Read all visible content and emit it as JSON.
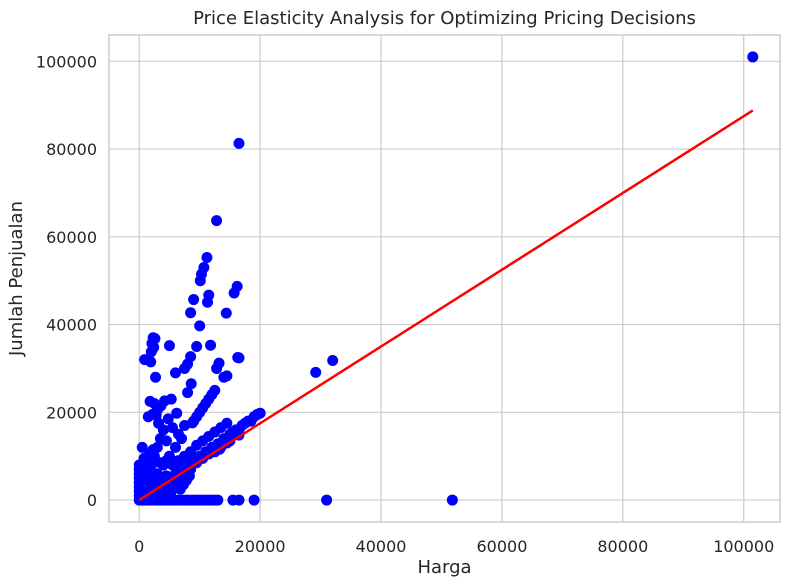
{
  "chart_data": {
    "type": "scatter",
    "title": "Price Elasticity Analysis for Optimizing Pricing Decisions",
    "xlabel": "Harga",
    "ylabel": "Jumlah Penjualan",
    "xlim": [
      -5000,
      106000
    ],
    "ylim": [
      -5000,
      106000
    ],
    "grid": true,
    "xticks": [
      0,
      20000,
      40000,
      60000,
      80000,
      100000
    ],
    "yticks": [
      0,
      20000,
      40000,
      60000,
      80000,
      100000
    ],
    "xtick_labels": [
      "0",
      "20000",
      "40000",
      "60000",
      "80000",
      "100000"
    ],
    "ytick_labels": [
      "0",
      "20000",
      "40000",
      "60000",
      "80000",
      "100000"
    ],
    "colors": {
      "points": "#0000ff",
      "fit_line": "#ff0000",
      "grid": "#cccccc"
    },
    "series": [
      {
        "kind": "scatter",
        "points": [
          [
            101500,
            101000
          ],
          [
            16500,
            81300
          ],
          [
            12800,
            63700
          ],
          [
            11200,
            55300
          ],
          [
            10700,
            53000
          ],
          [
            10300,
            51500
          ],
          [
            10100,
            50000
          ],
          [
            16200,
            48700
          ],
          [
            15700,
            47200
          ],
          [
            11500,
            46700
          ],
          [
            11300,
            45100
          ],
          [
            9000,
            45700
          ],
          [
            8500,
            42700
          ],
          [
            14400,
            42600
          ],
          [
            10000,
            39700
          ],
          [
            2300,
            37000
          ],
          [
            2600,
            36800
          ],
          [
            2100,
            35700
          ],
          [
            2400,
            34800
          ],
          [
            2000,
            33800
          ],
          [
            9500,
            35000
          ],
          [
            11800,
            35300
          ],
          [
            16300,
            32500
          ],
          [
            16500,
            32400
          ],
          [
            900,
            32000
          ],
          [
            1900,
            31500
          ],
          [
            2700,
            28000
          ],
          [
            29200,
            29100
          ],
          [
            32000,
            31800
          ],
          [
            5000,
            35200
          ],
          [
            6000,
            29000
          ],
          [
            7500,
            30000
          ],
          [
            8000,
            31000
          ],
          [
            8500,
            32700
          ],
          [
            13200,
            31200
          ],
          [
            12800,
            30000
          ],
          [
            14000,
            28000
          ],
          [
            14500,
            28300
          ],
          [
            1800,
            22500
          ],
          [
            2500,
            22000
          ],
          [
            2200,
            19500
          ],
          [
            3000,
            20500
          ],
          [
            3600,
            21500
          ],
          [
            4200,
            22600
          ],
          [
            5300,
            23000
          ],
          [
            6200,
            19800
          ],
          [
            8000,
            24500
          ],
          [
            8600,
            26500
          ],
          [
            1500,
            19000
          ],
          [
            2800,
            19300
          ],
          [
            3200,
            17500
          ],
          [
            4800,
            18500
          ],
          [
            9000,
            18000
          ],
          [
            10000,
            20000
          ],
          [
            11000,
            22000
          ],
          [
            12000,
            24000
          ],
          [
            12500,
            25000
          ],
          [
            8800,
            17600
          ],
          [
            10500,
            21000
          ],
          [
            11500,
            23000
          ],
          [
            9500,
            19000
          ],
          [
            20000,
            19800
          ],
          [
            19000,
            19000
          ],
          [
            18000,
            18000
          ],
          [
            17000,
            17000
          ],
          [
            16000,
            16000
          ],
          [
            15000,
            15000
          ],
          [
            14000,
            14000
          ],
          [
            13000,
            12800
          ],
          [
            12000,
            12000
          ],
          [
            11000,
            11000
          ],
          [
            10000,
            10000
          ],
          [
            9000,
            9000
          ],
          [
            8000,
            8000
          ],
          [
            7000,
            7000
          ],
          [
            6000,
            6000
          ],
          [
            5000,
            5000
          ],
          [
            4000,
            4000
          ],
          [
            3000,
            3000
          ],
          [
            2000,
            2000
          ],
          [
            1000,
            1000
          ],
          [
            13300,
            11600
          ],
          [
            14500,
            13000
          ],
          [
            15500,
            15500
          ],
          [
            16500,
            16000
          ],
          [
            3500,
            14000
          ],
          [
            3000,
            12000
          ],
          [
            4000,
            16000
          ],
          [
            4500,
            13500
          ],
          [
            5500,
            16500
          ],
          [
            6500,
            15000
          ],
          [
            7500,
            17000
          ],
          [
            2500,
            10000
          ],
          [
            2000,
            8000
          ],
          [
            1500,
            6000
          ],
          [
            1000,
            4000
          ],
          [
            500,
            2000
          ],
          [
            6000,
            12000
          ],
          [
            7000,
            14000
          ],
          [
            5000,
            10000
          ],
          [
            4000,
            8000
          ],
          [
            3000,
            6000
          ],
          [
            2000,
            4000
          ],
          [
            1000,
            2000
          ],
          [
            500,
            12000
          ],
          [
            300,
            8000
          ],
          [
            800,
            9500
          ],
          [
            1200,
            7500
          ],
          [
            1700,
            10500
          ],
          [
            2300,
            11500
          ],
          [
            2700,
            9000
          ],
          [
            3500,
            8500
          ],
          [
            4500,
            9000
          ],
          [
            5500,
            8000
          ],
          [
            6500,
            9000
          ],
          [
            7500,
            10000
          ],
          [
            8500,
            11000
          ],
          [
            9500,
            12500
          ],
          [
            10500,
            13500
          ],
          [
            11500,
            14500
          ],
          [
            12500,
            15500
          ],
          [
            13500,
            16500
          ],
          [
            14500,
            17500
          ],
          [
            200,
            6000
          ],
          [
            400,
            5000
          ],
          [
            600,
            4000
          ],
          [
            800,
            3000
          ],
          [
            100,
            1500
          ],
          [
            1500,
            5000
          ],
          [
            2500,
            5500
          ],
          [
            3500,
            5000
          ],
          [
            4500,
            5500
          ],
          [
            5500,
            5000
          ],
          [
            6500,
            6000
          ],
          [
            7500,
            6500
          ],
          [
            8500,
            7000
          ],
          [
            9500,
            8500
          ],
          [
            10500,
            9500
          ],
          [
            11500,
            10500
          ],
          [
            12500,
            11000
          ],
          [
            13500,
            12000
          ],
          [
            15000,
            13500
          ],
          [
            16500,
            14800
          ],
          [
            17500,
            17500
          ],
          [
            18500,
            18000
          ],
          [
            19500,
            19500
          ],
          [
            0,
            0
          ],
          [
            500,
            0
          ],
          [
            1000,
            0
          ],
          [
            1500,
            0
          ],
          [
            2000,
            0
          ],
          [
            2500,
            0
          ],
          [
            3000,
            0
          ],
          [
            3500,
            0
          ],
          [
            4000,
            0
          ],
          [
            4500,
            0
          ],
          [
            5000,
            0
          ],
          [
            5500,
            0
          ],
          [
            6000,
            0
          ],
          [
            6500,
            0
          ],
          [
            7000,
            0
          ],
          [
            7500,
            0
          ],
          [
            8000,
            0
          ],
          [
            8500,
            0
          ],
          [
            9000,
            0
          ],
          [
            9500,
            0
          ],
          [
            10000,
            0
          ],
          [
            10500,
            0
          ],
          [
            11000,
            0
          ],
          [
            11500,
            0
          ],
          [
            12000,
            0
          ],
          [
            12500,
            0
          ],
          [
            13000,
            0
          ],
          [
            15500,
            0
          ],
          [
            16500,
            0
          ],
          [
            19000,
            0
          ],
          [
            31000,
            0
          ],
          [
            51800,
            0
          ],
          [
            0,
            1000
          ],
          [
            0,
            2000
          ],
          [
            0,
            3000
          ],
          [
            0,
            4000
          ],
          [
            0,
            5000
          ],
          [
            0,
            6000
          ],
          [
            0,
            7000
          ],
          [
            0,
            8000
          ],
          [
            300,
            1000
          ],
          [
            600,
            2500
          ],
          [
            900,
            1500
          ],
          [
            1300,
            3500
          ],
          [
            1800,
            2500
          ],
          [
            2200,
            3500
          ],
          [
            2800,
            1500
          ],
          [
            3300,
            2500
          ],
          [
            3800,
            1500
          ],
          [
            4300,
            2500
          ],
          [
            4800,
            3500
          ],
          [
            5300,
            2000
          ],
          [
            5800,
            3000
          ],
          [
            6300,
            4000
          ],
          [
            6800,
            2500
          ],
          [
            7300,
            3500
          ],
          [
            7800,
            4500
          ],
          [
            8300,
            5500
          ]
        ]
      },
      {
        "kind": "line",
        "points": [
          [
            0,
            0
          ],
          [
            101500,
            88800
          ]
        ]
      }
    ]
  }
}
